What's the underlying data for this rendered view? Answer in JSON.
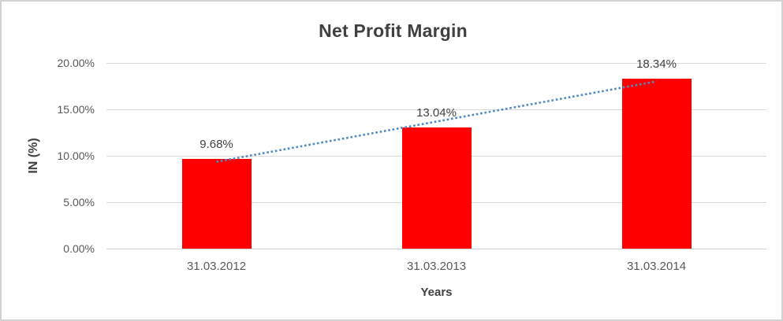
{
  "chart_data": {
    "type": "bar",
    "title": "Net Profit Margin",
    "xlabel": "Years",
    "ylabel": "IN (%)",
    "categories": [
      "31.03.2012",
      "31.03.2013",
      "31.03.2014"
    ],
    "values": [
      9.68,
      13.04,
      18.34
    ],
    "data_labels": [
      "9.68%",
      "13.04%",
      "18.34%"
    ],
    "y_ticks": [
      {
        "value": 0,
        "label": "0.00%"
      },
      {
        "value": 5,
        "label": "5.00%"
      },
      {
        "value": 10,
        "label": "10.00%"
      },
      {
        "value": 15,
        "label": "15.00%"
      },
      {
        "value": 20,
        "label": "20.00%"
      }
    ],
    "ylim": [
      0,
      20
    ],
    "grid": true,
    "legend": "none",
    "colors": {
      "bar": "#ff0000",
      "trendline": "#5089c6",
      "gridline": "#d9d9d9",
      "title_text": "#404040",
      "tick_text": "#595959",
      "frame_border": "#d2d2d2"
    },
    "trendline": {
      "type": "linear",
      "style": "dotted"
    }
  }
}
